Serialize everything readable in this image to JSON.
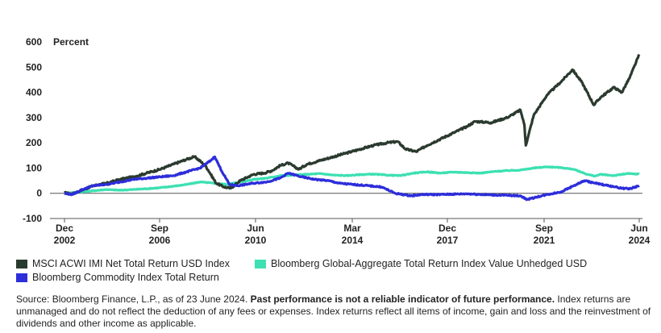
{
  "chart_data": {
    "type": "line",
    "ylabel": "Percent",
    "ylim": [
      -100,
      600
    ],
    "yticks": [
      -100,
      0,
      100,
      200,
      300,
      400,
      500,
      600
    ],
    "xlim": [
      2002.92,
      2024.45
    ],
    "xticks": [
      {
        "value": 2002.92,
        "month": "Dec",
        "year": "2002"
      },
      {
        "value": 2006.67,
        "month": "Sep",
        "year": "2006"
      },
      {
        "value": 2010.42,
        "month": "Jun",
        "year": "2010"
      },
      {
        "value": 2014.17,
        "month": "Mar",
        "year": "2014"
      },
      {
        "value": 2017.92,
        "month": "Dec",
        "year": "2017"
      },
      {
        "value": 2021.67,
        "month": "Sep",
        "year": "2021"
      },
      {
        "value": 2025.42,
        "month": "Jun",
        "year": "2024"
      }
    ],
    "series": [
      {
        "name": "MSCI ACWI IMI Net Total Return USD Index",
        "color": "#2b3a2e",
        "x": [
          2002.92,
          2003.2,
          2003.5,
          2004.0,
          2004.5,
          2005.0,
          2005.5,
          2006.0,
          2006.5,
          2007.0,
          2007.5,
          2007.8,
          2008.2,
          2008.6,
          2008.9,
          2009.15,
          2009.5,
          2010.0,
          2010.4,
          2010.7,
          2011.0,
          2011.3,
          2011.7,
          2012.0,
          2012.5,
          2013.0,
          2013.5,
          2014.0,
          2014.5,
          2015.0,
          2015.4,
          2015.7,
          2016.1,
          2016.5,
          2017.0,
          2017.5,
          2018.0,
          2018.3,
          2018.9,
          2019.5,
          2020.0,
          2020.15,
          2020.2,
          2020.5,
          2021.0,
          2021.5,
          2021.95,
          2022.3,
          2022.75,
          2023.0,
          2023.5,
          2023.8,
          2024.1,
          2024.45
        ],
        "values": [
          2,
          -3,
          10,
          30,
          40,
          55,
          65,
          80,
          95,
          115,
          135,
          145,
          110,
          40,
          25,
          20,
          50,
          75,
          80,
          90,
          110,
          120,
          95,
          115,
          130,
          145,
          160,
          175,
          190,
          200,
          205,
          175,
          165,
          190,
          215,
          240,
          265,
          285,
          280,
          300,
          330,
          270,
          190,
          310,
          390,
          440,
          490,
          440,
          350,
          380,
          420,
          400,
          460,
          550
        ]
      },
      {
        "name": "Bloomberg Global-Aggregate Total Return Index Value Unhedged USD",
        "color": "#3de0b2",
        "x": [
          2002.92,
          2003.5,
          2004.0,
          2004.5,
          2005.0,
          2005.5,
          2006.0,
          2006.5,
          2007.0,
          2007.5,
          2008.0,
          2008.5,
          2009.0,
          2009.5,
          2010.0,
          2010.5,
          2011.0,
          2011.5,
          2012.0,
          2012.5,
          2013.0,
          2013.5,
          2014.0,
          2014.5,
          2015.0,
          2015.5,
          2016.0,
          2016.5,
          2017.0,
          2017.5,
          2018.0,
          2018.5,
          2019.0,
          2019.5,
          2020.0,
          2020.5,
          2021.0,
          2021.5,
          2022.0,
          2022.5,
          2022.8,
          2023.0,
          2023.5,
          2024.0,
          2024.45
        ],
        "values": [
          0,
          5,
          10,
          15,
          12,
          15,
          18,
          22,
          28,
          35,
          45,
          40,
          35,
          45,
          55,
          60,
          70,
          72,
          75,
          78,
          72,
          70,
          74,
          76,
          72,
          70,
          80,
          85,
          80,
          84,
          82,
          80,
          86,
          90,
          92,
          100,
          105,
          102,
          95,
          75,
          68,
          75,
          70,
          78,
          76
        ]
      },
      {
        "name": "Bloomberg Commodity Index Total Return",
        "color": "#2d2ddb",
        "x": [
          2002.92,
          2003.2,
          2003.6,
          2004.0,
          2004.5,
          2005.0,
          2005.5,
          2006.0,
          2006.5,
          2007.0,
          2007.5,
          2008.0,
          2008.4,
          2008.55,
          2008.8,
          2009.1,
          2009.4,
          2010.0,
          2010.5,
          2011.0,
          2011.3,
          2011.8,
          2012.3,
          2012.8,
          2013.2,
          2013.7,
          2014.3,
          2014.8,
          2015.3,
          2015.9,
          2016.3,
          2017.0,
          2018.0,
          2018.8,
          2019.5,
          2020.0,
          2020.25,
          2020.6,
          2021.0,
          2021.5,
          2022.0,
          2022.4,
          2022.8,
          2023.3,
          2023.8,
          2024.1,
          2024.45
        ],
        "values": [
          0,
          -5,
          15,
          30,
          35,
          45,
          55,
          60,
          65,
          70,
          85,
          100,
          130,
          145,
          90,
          35,
          30,
          40,
          45,
          60,
          80,
          65,
          55,
          50,
          40,
          35,
          30,
          25,
          0,
          -10,
          -5,
          -5,
          -2,
          -6,
          -8,
          -10,
          -25,
          -15,
          -5,
          5,
          30,
          50,
          40,
          30,
          20,
          18,
          30
        ]
      }
    ]
  },
  "legend": {
    "items": [
      {
        "label": "MSCI ACWI IMI Net Total Return USD Index",
        "color": "#2b3a2e"
      },
      {
        "label": "Bloomberg Global-Aggregate Total Return Index Value Unhedged USD",
        "color": "#3de0b2"
      },
      {
        "label": "Bloomberg Commodity Index Total Return",
        "color": "#2d2ddb"
      }
    ]
  },
  "source": {
    "intro": "Source: Bloomberg Finance, L.P., as of 23 June 2024. ",
    "bold": "Past performance is not a reliable indicator of future performance.",
    "rest": " Index returns are unmanaged and do not reflect the deduction of any fees or expenses. Index returns reflect all items of income, gain and loss and the reinvestment of dividends and other income as applicable."
  }
}
